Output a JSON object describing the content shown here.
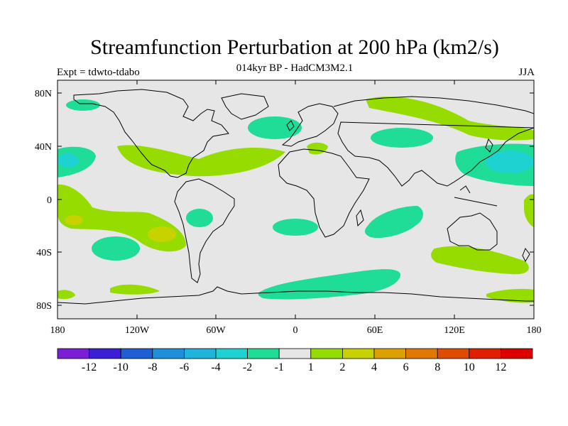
{
  "title": "Streamfunction Perturbation at 200 hPa (km2/s)",
  "subtitle": "014kyr BP - HadCM3M2.1",
  "experiment": "Expt = tdwto-tdabo",
  "season": "JJA",
  "lat_ticks": [
    "80N",
    "40N",
    "0",
    "40S",
    "80S"
  ],
  "lon_ticks": [
    "180",
    "120W",
    "60W",
    "0",
    "60E",
    "120E",
    "180"
  ],
  "colorbar": {
    "colors": [
      "#7a1fd6",
      "#3a1fd6",
      "#1f5fd6",
      "#1f8fdc",
      "#1fb4dc",
      "#1fd2d2",
      "#1fdc96",
      "#e6e6e6",
      "#96dc00",
      "#c8d200",
      "#dca000",
      "#e17800",
      "#e14b00",
      "#e11e00",
      "#dc0000"
    ],
    "labels": [
      "-12",
      "-10",
      "-8",
      "-6",
      "-4",
      "-2",
      "-1",
      "1",
      "2",
      "4",
      "6",
      "8",
      "10",
      "12"
    ]
  },
  "colors": {
    "background": "#e6e6e6",
    "positive_light": "#96dc00",
    "positive_mid": "#c8d200",
    "negative_light": "#1fdc96",
    "negative_mid": "#1fd2d2"
  }
}
